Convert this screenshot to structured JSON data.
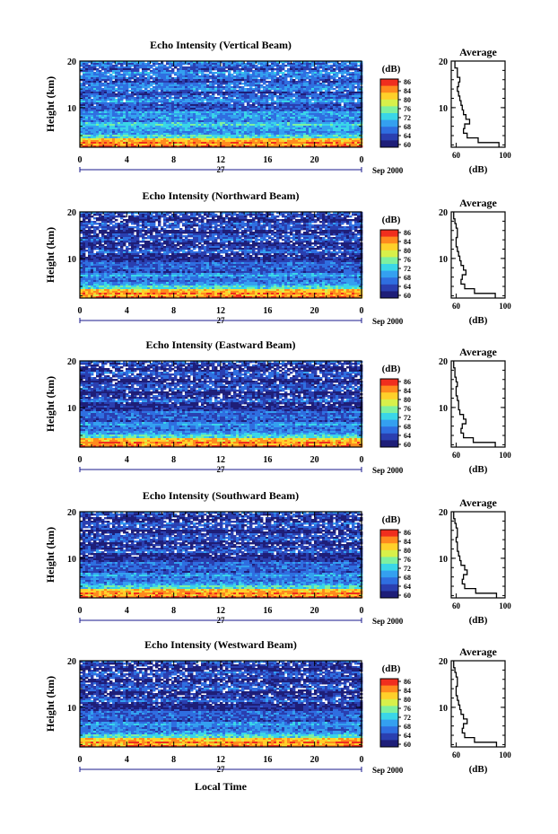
{
  "figure": {
    "xlabel": "Local Time",
    "date_label": "Sep 2000",
    "day_label": "27",
    "avg_title": "Average",
    "avg_xlabel": "(dB)",
    "colorbar_title": "(dB)",
    "ylabel": "Height (km)"
  },
  "colors": {
    "colormap": [
      "#1e1e78",
      "#2a3fb0",
      "#2f6ee0",
      "#34a0f0",
      "#3ad6e8",
      "#7ef0a0",
      "#d8f04a",
      "#ffd02a",
      "#ff8a1e",
      "#f02e1e"
    ]
  },
  "chart_data": [
    {
      "type": "heatmap",
      "title": "Echo Intensity (Vertical Beam)",
      "ylabel": "Height (km)",
      "x_ticks": [
        "0",
        "4",
        "8",
        "12",
        "16",
        "20",
        "0"
      ],
      "y_ticks": [
        "20",
        "10"
      ],
      "xlim": [
        0,
        24
      ],
      "ylim": [
        1.5,
        20
      ],
      "colorbar": {
        "title": "(dB)",
        "ticks": [
          "86",
          "84",
          "80",
          "76",
          "72",
          "68",
          "64",
          "60"
        ],
        "range": [
          60,
          88
        ]
      },
      "profile": {
        "title": "Average",
        "xlabel": "(dB)",
        "x_ticks": [
          "60",
          "100"
        ],
        "y_ticks": [
          "20",
          "10"
        ],
        "xlim": [
          56,
          100
        ],
        "height": [
          2,
          3,
          4,
          5,
          6,
          7,
          8,
          9,
          10,
          11,
          12,
          13,
          14,
          15,
          16,
          17,
          18,
          19,
          20
        ],
        "value": [
          95,
          78,
          69,
          66,
          67,
          71,
          68,
          66,
          65,
          64,
          63,
          62,
          61,
          62,
          63,
          61,
          61,
          59,
          59
        ]
      }
    },
    {
      "type": "heatmap",
      "title": "Echo Intensity (Northward Beam)",
      "ylabel": "Height (km)",
      "x_ticks": [
        "0",
        "4",
        "8",
        "12",
        "16",
        "20",
        "0"
      ],
      "y_ticks": [
        "20",
        "10"
      ],
      "xlim": [
        0,
        24
      ],
      "ylim": [
        1.5,
        20
      ],
      "colorbar": {
        "title": "(dB)",
        "ticks": [
          "86",
          "84",
          "80",
          "76",
          "72",
          "68",
          "64",
          "60"
        ],
        "range": [
          60,
          88
        ]
      },
      "profile": {
        "title": "Average",
        "xlabel": "(dB)",
        "x_ticks": [
          "60",
          "100"
        ],
        "y_ticks": [
          "20",
          "10"
        ],
        "xlim": [
          56,
          100
        ],
        "height": [
          2,
          3,
          4,
          5,
          6,
          7,
          8,
          9,
          10,
          11,
          12,
          13,
          14,
          15,
          16,
          17,
          18,
          19,
          20
        ],
        "value": [
          92,
          75,
          67,
          64,
          65,
          68,
          66,
          64,
          63,
          62,
          61,
          60,
          60,
          61,
          61,
          60,
          59,
          58,
          58
        ]
      }
    },
    {
      "type": "heatmap",
      "title": "Echo Intensity (Eastward Beam)",
      "ylabel": "Height (km)",
      "x_ticks": [
        "0",
        "4",
        "8",
        "12",
        "16",
        "20",
        "0"
      ],
      "y_ticks": [
        "20",
        "10"
      ],
      "xlim": [
        0,
        24
      ],
      "ylim": [
        1.5,
        20
      ],
      "colorbar": {
        "title": "(dB)",
        "ticks": [
          "86",
          "84",
          "80",
          "76",
          "72",
          "68",
          "64",
          "60"
        ],
        "range": [
          60,
          88
        ]
      },
      "profile": {
        "title": "Average",
        "xlabel": "(dB)",
        "x_ticks": [
          "60",
          "100"
        ],
        "y_ticks": [
          "20",
          "10"
        ],
        "xlim": [
          56,
          100
        ],
        "height": [
          2,
          3,
          4,
          5,
          6,
          7,
          8,
          9,
          10,
          11,
          12,
          13,
          14,
          15,
          16,
          17,
          18,
          19,
          20
        ],
        "value": [
          92,
          74,
          66,
          64,
          65,
          68,
          66,
          63,
          62,
          62,
          61,
          60,
          60,
          61,
          60,
          59,
          59,
          58,
          58
        ]
      }
    },
    {
      "type": "heatmap",
      "title": "Echo Intensity (Southward Beam)",
      "ylabel": "Height (km)",
      "x_ticks": [
        "0",
        "4",
        "8",
        "12",
        "16",
        "20",
        "0"
      ],
      "y_ticks": [
        "20",
        "10"
      ],
      "xlim": [
        0,
        24
      ],
      "ylim": [
        1.5,
        20
      ],
      "colorbar": {
        "title": "(dB)",
        "ticks": [
          "86",
          "84",
          "80",
          "76",
          "72",
          "68",
          "64",
          "60"
        ],
        "range": [
          60,
          88
        ]
      },
      "profile": {
        "title": "Average",
        "xlabel": "(dB)",
        "x_ticks": [
          "60",
          "100"
        ],
        "y_ticks": [
          "20",
          "10"
        ],
        "xlim": [
          56,
          100
        ],
        "height": [
          2,
          3,
          4,
          5,
          6,
          7,
          8,
          9,
          10,
          11,
          12,
          13,
          14,
          15,
          16,
          17,
          18,
          19,
          20
        ],
        "value": [
          93,
          76,
          67,
          65,
          66,
          69,
          67,
          64,
          63,
          62,
          61,
          61,
          60,
          61,
          61,
          60,
          59,
          58,
          58
        ]
      }
    },
    {
      "type": "heatmap",
      "title": "Echo Intensity (Westward Beam)",
      "ylabel": "Height (km)",
      "x_ticks": [
        "0",
        "4",
        "8",
        "12",
        "16",
        "20",
        "0"
      ],
      "y_ticks": [
        "20",
        "10"
      ],
      "xlim": [
        0,
        24
      ],
      "ylim": [
        1.5,
        20
      ],
      "colorbar": {
        "title": "(dB)",
        "ticks": [
          "86",
          "84",
          "80",
          "76",
          "72",
          "68",
          "64",
          "60"
        ],
        "range": [
          60,
          88
        ]
      },
      "profile": {
        "title": "Average",
        "xlabel": "(dB)",
        "x_ticks": [
          "60",
          "100"
        ],
        "y_ticks": [
          "20",
          "10"
        ],
        "xlim": [
          56,
          100
        ],
        "height": [
          2,
          3,
          4,
          5,
          6,
          7,
          8,
          9,
          10,
          11,
          12,
          13,
          14,
          15,
          16,
          17,
          18,
          19,
          20
        ],
        "value": [
          93,
          75,
          67,
          65,
          66,
          69,
          66,
          64,
          63,
          62,
          61,
          60,
          60,
          61,
          61,
          60,
          59,
          58,
          58
        ]
      }
    }
  ]
}
